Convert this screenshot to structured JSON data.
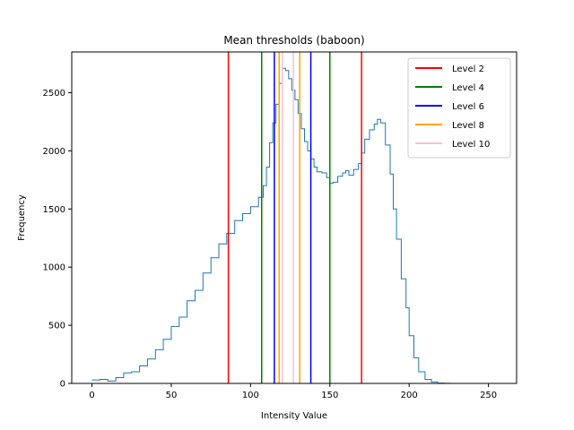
{
  "chart_data": {
    "type": "line",
    "title": "Mean thresholds (baboon)",
    "xlabel": "Intensity Value",
    "ylabel": "Frequency",
    "xlim": [
      -12.75,
      267.75
    ],
    "ylim": [
      0,
      2850
    ],
    "xticks": [
      0,
      50,
      100,
      150,
      200,
      250
    ],
    "yticks": [
      0,
      500,
      1000,
      1500,
      2000,
      2500
    ],
    "grid": false,
    "legend_position": "top-right",
    "histogram": {
      "name": "",
      "color": "#1f77b4",
      "x": [
        0,
        5,
        10,
        15,
        20,
        25,
        30,
        35,
        40,
        45,
        50,
        55,
        60,
        65,
        70,
        75,
        80,
        85,
        90,
        95,
        100,
        105,
        108,
        110,
        112,
        114,
        116,
        118,
        120,
        122,
        124,
        126,
        128,
        130,
        132,
        134,
        136,
        138,
        140,
        142,
        145,
        148,
        150,
        152,
        155,
        158,
        160,
        162,
        165,
        168,
        170,
        172,
        175,
        178,
        180,
        182,
        185,
        188,
        190,
        192,
        195,
        198,
        200,
        203,
        206,
        210,
        214,
        218,
        222,
        226,
        230,
        240,
        250,
        255
      ],
      "values": [
        30,
        35,
        20,
        50,
        90,
        100,
        150,
        210,
        290,
        380,
        490,
        570,
        710,
        800,
        950,
        1080,
        1200,
        1290,
        1400,
        1460,
        1520,
        1600,
        1700,
        1860,
        2070,
        2240,
        2400,
        2580,
        2710,
        2690,
        2620,
        2520,
        2440,
        2320,
        2190,
        2080,
        2000,
        1930,
        1860,
        1820,
        1810,
        1770,
        1720,
        1730,
        1780,
        1810,
        1830,
        1790,
        1840,
        1890,
        1980,
        2100,
        2180,
        2230,
        2270,
        2240,
        2050,
        1800,
        1500,
        1240,
        900,
        650,
        410,
        220,
        100,
        35,
        12,
        3,
        1,
        0,
        0,
        0,
        0,
        0
      ]
    },
    "series": [
      {
        "name": "Level 2",
        "color": "#ff0000",
        "thresholds": [
          86,
          170
        ]
      },
      {
        "name": "Level 4",
        "color": "#008000",
        "thresholds": [
          107,
          150
        ]
      },
      {
        "name": "Level 6",
        "color": "#0000ff",
        "thresholds": [
          115,
          138
        ]
      },
      {
        "name": "Level 8",
        "color": "#ffa500",
        "thresholds": [
          118,
          131
        ]
      },
      {
        "name": "Level 10",
        "color": "#ffc0cb",
        "thresholds": [
          120,
          127
        ]
      }
    ]
  }
}
